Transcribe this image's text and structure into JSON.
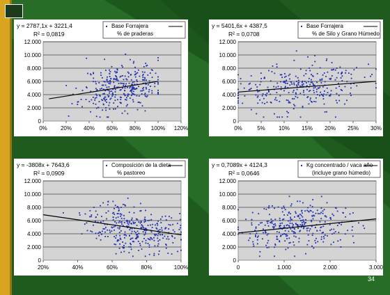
{
  "slide": {
    "page_number": "34"
  },
  "colors": {
    "background": "#1f5a1f",
    "diagonal": "#2e7d2e",
    "left_band": "#d9a520",
    "plot_area": "#d4d4d4",
    "points": "#1f2fb0",
    "trend": "#000000"
  },
  "chart_data": [
    {
      "type": "scatter",
      "equation": "y = 2787,1x + 3221,4",
      "r2": "R² = 0,0819",
      "legend": [
        "Base Forrajera",
        "% de praderas"
      ],
      "x_ticks": [
        "0%",
        "20%",
        "40%",
        "60%",
        "80%",
        "100%",
        "120%"
      ],
      "y_ticks": [
        "0",
        "2.000",
        "4.000",
        "6.000",
        "8.000",
        "10.000",
        "12.000"
      ],
      "xlim": [
        0,
        1.2
      ],
      "ylim": [
        0,
        12000
      ],
      "trend": {
        "slope": 2787.1,
        "intercept": 3221.4,
        "x_range": [
          0.05,
          1.0
        ]
      },
      "points": {
        "count": 330,
        "x_center": 0.68,
        "x_spread": 0.17,
        "x_min": 0.05,
        "x_max": 1.0,
        "seed": 11
      }
    },
    {
      "type": "scatter",
      "equation": "y = 5401,6x + 4387,5",
      "r2": "R² = 0,0708",
      "legend": [
        "Base Forrajera",
        "% de Silo y Grano Húmedo"
      ],
      "x_ticks": [
        "0%",
        "5%",
        "10%",
        "15%",
        "20%",
        "25%",
        "30%"
      ],
      "y_ticks": [
        "0",
        "2.000",
        "4.000",
        "6.000",
        "8.000",
        "10.000",
        "12.000"
      ],
      "xlim": [
        0,
        0.3
      ],
      "ylim": [
        0,
        12000
      ],
      "trend": {
        "slope": 5401.6,
        "intercept": 4387.5,
        "x_range": [
          0,
          0.3
        ]
      },
      "points": {
        "count": 300,
        "x_center": 0.13,
        "x_spread": 0.07,
        "x_min": 0.0,
        "x_max": 0.3,
        "seed": 23
      }
    },
    {
      "type": "scatter",
      "equation": "y = -3808x + 7643,6",
      "r2": "R² = 0,0909",
      "legend": [
        "Composición de la dieta",
        "% pastoreo"
      ],
      "x_ticks": [
        "20%",
        "40%",
        "60%",
        "80%",
        "100%"
      ],
      "y_ticks": [
        "0",
        "2.000",
        "4.000",
        "6.000",
        "8.000",
        "10.000",
        "12.000"
      ],
      "xlim": [
        0.2,
        1.0
      ],
      "ylim": [
        0,
        12000
      ],
      "trend": {
        "slope": -3808,
        "intercept": 7643.6,
        "x_range": [
          0.2,
          1.0
        ]
      },
      "points": {
        "count": 330,
        "x_center": 0.72,
        "x_spread": 0.13,
        "x_min": 0.22,
        "x_max": 1.0,
        "seed": 37
      }
    },
    {
      "type": "scatter",
      "equation": "y = 0,7089x + 4124,3",
      "r2": "R² = 0,0646",
      "legend": [
        "Kg concentrado / vaca año",
        "(incluye grano húmedo)"
      ],
      "x_ticks": [
        "0",
        "1.000",
        "2.000",
        "3.000"
      ],
      "y_ticks": [
        "0",
        "2.000",
        "4.000",
        "6.000",
        "8.000",
        "10.000",
        "12.000"
      ],
      "xlim": [
        0,
        3000
      ],
      "ylim": [
        0,
        12000
      ],
      "trend": {
        "slope": 0.7089,
        "intercept": 4124.3,
        "x_range": [
          0,
          3000
        ]
      },
      "points": {
        "count": 320,
        "x_center": 1300,
        "x_spread": 600,
        "x_min": 0,
        "x_max": 3000,
        "seed": 51
      }
    }
  ]
}
